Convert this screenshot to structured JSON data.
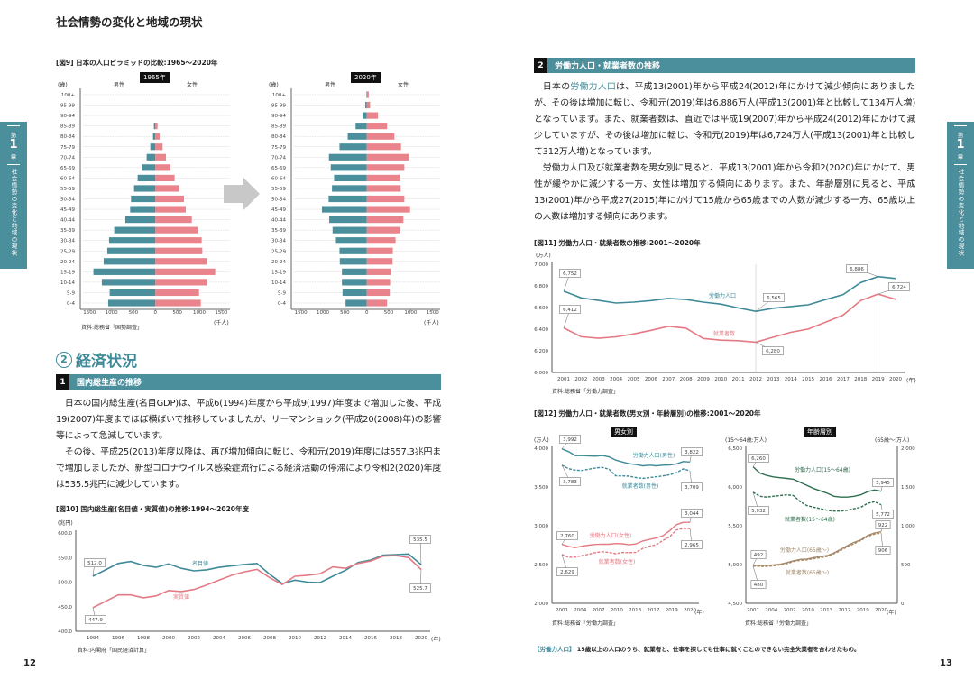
{
  "header": {
    "title": "社会情勢の変化と地域の現状"
  },
  "side_tab": {
    "chapter_prefix": "第",
    "chapter_num": "1",
    "chapter_suffix": "章",
    "label": "社会情勢の変化と地域の現状"
  },
  "left_page": {
    "page_number": "12",
    "section_heading": {
      "num": "②",
      "title": "経済状況"
    },
    "subsection": {
      "num": "1",
      "title": "国内総生産の推移"
    },
    "paragraphs": [
      "日本の国内総生産(名目GDP)は、平成6(1994)年度から平成9(1997)年度まで増加した後、平成19(2007)年度までほぼ横ばいで推移していましたが、リーマンショック(平成20(2008)年)の影響等によって急減しています。",
      "その後、平成25(2013)年度以降は、再び増加傾向に転じ、令和元(2019)年度には557.3兆円まで増加しましたが、新型コロナウイルス感染症流行による経済活動の停滞により令和2(2020)年度は535.5兆円に減少しています。"
    ]
  },
  "right_page": {
    "page_number": "13",
    "subsection": {
      "num": "2",
      "title": "労働力人口・就業者数の推移"
    },
    "paragraph1_pre": "日本の",
    "paragraph1_term": "労働力人口",
    "paragraph1_post": "は、平成13(2001)年から平成24(2012)年にかけて減少傾向にありましたが、その後は増加に転じ、令和元(2019)年は6,886万人(平成13(2001)年と比較して134万人増)となっています。また、就業者数は、直近では平成19(2007)年から平成24(2012)年にかけて減少していますが、その後は増加に転じ、令和元(2019)年は6,724万人(平成13(2001)年と比較して312万人増)となっています。",
    "paragraph2": "労働力人口及び就業者数を男女別に見ると、平成13(2001)年から令和2(2020)年にかけて、男性が緩やかに減少する一方、女性は増加する傾向にあります。また、年齢層別に見ると、平成13(2001)年から平成27(2015)年にかけて15歳から65歳までの人数が減少する一方、65歳以上の人数は増加する傾向にあります。",
    "footnote_term": "【労働力人口】",
    "footnote_text": "15歳以上の人口のうち、就業者と、仕事を探しても仕事に就くことのできない完全失業者を合わせたもの。"
  },
  "colors": {
    "teal": "#3f8a99",
    "pink": "#e47a84",
    "green": "#2e6f4f",
    "tan": "#a58a6a",
    "bar": "#4b8f9d"
  },
  "figures": {
    "fig9_title": "[図9] 日本の人口ピラミッドの比較:1965〜2020年",
    "fig9_source": "資料:総務省「国勢調査」",
    "fig12_title": "[図12] 労働力人口・就業者数(男女別・年齢層別)の推移:2001〜2020年"
  },
  "chart_data": [
    {
      "type": "bar",
      "subtype": "population-pyramid",
      "title": "1965年",
      "ylabel": "(歳)",
      "male_label": "男性",
      "female_label": "女性",
      "unit": "(千人)",
      "xticks": [
        "1500",
        "1000",
        "500",
        "0",
        "500",
        "1000",
        "1500"
      ],
      "xlim": [
        -1500,
        1500
      ],
      "categories": [
        "100+",
        "95-99",
        "90-94",
        "85-89",
        "80-84",
        "75-79",
        "70-74",
        "65-69",
        "60-64",
        "55-59",
        "50-54",
        "45-49",
        "40-44",
        "35-39",
        "30-34",
        "25-29",
        "20-24",
        "15-19",
        "10-14",
        "5-9",
        "0-4"
      ],
      "series": [
        {
          "name": "男性",
          "values": [
            0,
            0,
            0,
            34,
            55,
            116,
            199,
            308,
            404,
            486,
            555,
            575,
            685,
            938,
            1055,
            1096,
            1178,
            1411,
            1219,
            1041,
            1075
          ]
        },
        {
          "name": "女性",
          "values": [
            0,
            0,
            0,
            48,
            96,
            164,
            240,
            342,
            438,
            541,
            651,
            692,
            829,
            959,
            1055,
            1068,
            1178,
            1363,
            1171,
            993,
            1034
          ]
        }
      ]
    },
    {
      "type": "bar",
      "subtype": "population-pyramid",
      "title": "2020年",
      "ylabel": "(歳)",
      "male_label": "男性",
      "female_label": "女性",
      "unit": "(千人)",
      "xticks": [
        "1500",
        "1000",
        "500",
        "0",
        "500",
        "1000",
        "1500"
      ],
      "xlim": [
        -1500,
        1500
      ],
      "categories": [
        "100+",
        "95-99",
        "90-94",
        "85-89",
        "80-84",
        "75-79",
        "70-74",
        "65-69",
        "60-64",
        "55-59",
        "50-54",
        "45-49",
        "40-44",
        "35-39",
        "30-34",
        "25-29",
        "20-24",
        "15-19",
        "10-14",
        "5-9",
        "0-4"
      ],
      "series": [
        {
          "name": "男性",
          "values": [
            10,
            34,
            97,
            255,
            434,
            621,
            862,
            821,
            745,
            793,
            869,
            1021,
            855,
            779,
            703,
            621,
            614,
            566,
            566,
            552,
            483
          ]
        },
        {
          "name": "女性",
          "values": [
            45,
            76,
            255,
            462,
            628,
            779,
            959,
            855,
            752,
            772,
            855,
            986,
            834,
            752,
            655,
            593,
            586,
            552,
            531,
            524,
            462
          ]
        }
      ]
    },
    {
      "type": "line",
      "title": "[図10] 国内総生産(名目値・実質値)の推移:1994〜2020年度",
      "ylabel": "(兆円)",
      "xunit": "(年)",
      "source": "資料:内閣府「国民経済計算」",
      "ylim": [
        400,
        600
      ],
      "yticks": [
        "400.0",
        "450.0",
        "500.0",
        "550.0",
        "600.0"
      ],
      "x": [
        1994,
        1995,
        1996,
        1997,
        1998,
        1999,
        2000,
        2001,
        2002,
        2003,
        2004,
        2005,
        2006,
        2007,
        2008,
        2009,
        2010,
        2011,
        2012,
        2013,
        2014,
        2015,
        2016,
        2017,
        2018,
        2019,
        2020
      ],
      "xticks": [
        "1994",
        "1996",
        "1998",
        "2000",
        "2002",
        "2004",
        "2006",
        "2008",
        "2010",
        "2012",
        "2014",
        "2016",
        "2018",
        "2020"
      ],
      "series": [
        {
          "name": "名目値",
          "color": "#3f8a99",
          "values": [
            512.0,
            525,
            538,
            542,
            534,
            530,
            537,
            528,
            523,
            525,
            530,
            533,
            536,
            538,
            516,
            497,
            504,
            500,
            499,
            512,
            524,
            540,
            545,
            555,
            556,
            557.3,
            535.5
          ]
        },
        {
          "name": "実質値",
          "color": "#e47a84",
          "values": [
            447.9,
            461,
            474,
            474,
            468,
            472,
            483,
            481,
            485,
            494,
            504,
            514,
            521,
            526,
            509,
            495,
            512,
            514,
            517,
            531,
            528,
            538,
            543,
            553,
            554,
            550,
            525.7
          ]
        }
      ],
      "annotations": [
        "512.0",
        "447.9",
        "535.5",
        "525.7"
      ]
    },
    {
      "type": "line",
      "title": "[図11] 労働力人口・就業者数の推移:2001〜2020年",
      "ylabel": "(万人)",
      "xunit": "(年)",
      "source": "資料:総務省「労働力調査」",
      "ylim": [
        6000,
        7000
      ],
      "yticks": [
        "6,000",
        "6,200",
        "6,400",
        "6,600",
        "6,800",
        "7,000"
      ],
      "x": [
        2001,
        2002,
        2003,
        2004,
        2005,
        2006,
        2007,
        2008,
        2009,
        2010,
        2011,
        2012,
        2013,
        2014,
        2015,
        2016,
        2017,
        2018,
        2019,
        2020
      ],
      "xticks": [
        "2001",
        "2002",
        "2003",
        "2004",
        "2005",
        "2006",
        "2007",
        "2008",
        "2009",
        "2010",
        "2011",
        "2012",
        "2013",
        "2014",
        "2015",
        "2016",
        "2017",
        "2018",
        "2019",
        "2020"
      ],
      "series": [
        {
          "name": "労働力人口",
          "color": "#3f8a99",
          "values": [
            6752,
            6689,
            6666,
            6642,
            6650,
            6664,
            6684,
            6674,
            6650,
            6632,
            6596,
            6565,
            6593,
            6609,
            6625,
            6673,
            6720,
            6830,
            6886,
            6868
          ]
        },
        {
          "name": "就業者数",
          "color": "#e47a84",
          "values": [
            6412,
            6330,
            6316,
            6329,
            6356,
            6389,
            6427,
            6409,
            6314,
            6298,
            6293,
            6280,
            6326,
            6371,
            6401,
            6465,
            6530,
            6664,
            6724,
            6676
          ]
        }
      ],
      "annotations": [
        "6,752",
        "6,412",
        "6,565",
        "6,280",
        "6,886",
        "6,724"
      ]
    },
    {
      "type": "line",
      "title": "男女別",
      "ylabel": "(万人)",
      "xunit": "(年)",
      "source": "資料:総務省「労働力調査」",
      "ylim": [
        2000,
        4000
      ],
      "yticks": [
        "2,000",
        "2,500",
        "3,000",
        "3,500",
        "4,000"
      ],
      "xticks": [
        "2001",
        "2004",
        "2007",
        "2010",
        "2013",
        "2017",
        "2019",
        "2020"
      ],
      "series": [
        {
          "name": "労働力人口(男性)",
          "color": "#3f8a99",
          "dashed": false,
          "values": [
            3992,
            3956,
            3905,
            3905,
            3901,
            3898,
            3906,
            3888,
            3847,
            3822,
            3800,
            3789,
            3773,
            3781,
            3773,
            3781,
            3784,
            3798,
            3828,
            3822
          ]
        },
        {
          "name": "就業者数(男性)",
          "color": "#3f8a99",
          "dashed": true,
          "values": [
            3783,
            3736,
            3718,
            3713,
            3730,
            3745,
            3753,
            3729,
            3644,
            3643,
            3639,
            3622,
            3610,
            3621,
            3632,
            3643,
            3658,
            3685,
            3733,
            3709
          ]
        },
        {
          "name": "労働力人口(女性)",
          "color": "#e47a84",
          "dashed": false,
          "values": [
            2760,
            2733,
            2717,
            2737,
            2750,
            2759,
            2763,
            2762,
            2771,
            2768,
            2755,
            2766,
            2804,
            2824,
            2842,
            2872,
            2937,
            3014,
            3044,
            3044
          ]
        },
        {
          "name": "就業者数(女性)",
          "color": "#e47a84",
          "dashed": true,
          "values": [
            2629,
            2594,
            2597,
            2616,
            2633,
            2655,
            2665,
            2656,
            2640,
            2656,
            2654,
            2658,
            2707,
            2737,
            2754,
            2810,
            2859,
            2946,
            2965,
            2965
          ]
        }
      ],
      "annotations": [
        "3,992",
        "3,783",
        "3,822",
        "3,709",
        "3,044",
        "2,965",
        "2,760",
        "2,629"
      ]
    },
    {
      "type": "line",
      "title": "年齢層別",
      "ylabel": "(15〜64歳:万人)",
      "ylabel_right": "(65歳〜:万人)",
      "xunit": "(年)",
      "source": "資料:総務省「労働力調査」",
      "ylim": [
        4500,
        6500
      ],
      "yticks": [
        "4,500",
        "5,000",
        "5,500",
        "6,000",
        "6,500"
      ],
      "ylim_right": [
        0,
        2000
      ],
      "yticks_right": [
        "0",
        "500",
        "1,000",
        "1,500",
        "2,000"
      ],
      "xticks": [
        "2001",
        "2004",
        "2007",
        "2010",
        "2013",
        "2017",
        "2019",
        "2020"
      ],
      "series": [
        {
          "name": "労働力人口(15〜64歳)",
          "color": "#2e6f4f",
          "dashed": false,
          "axis": "left",
          "values": [
            6260,
            6180,
            6150,
            6130,
            6120,
            6110,
            6100,
            6060,
            6020,
            5980,
            5950,
            5920,
            5880,
            5870,
            5870,
            5880,
            5900,
            5940,
            5960,
            5945
          ]
        },
        {
          "name": "就業者数(15〜64歳)",
          "color": "#2e6f4f",
          "dashed": true,
          "axis": "left",
          "values": [
            5932,
            5880,
            5870,
            5880,
            5890,
            5900,
            5890,
            5810,
            5760,
            5740,
            5720,
            5700,
            5690,
            5690,
            5700,
            5720,
            5740,
            5790,
            5810,
            5772
          ]
        },
        {
          "name": "労働力人口(65歳〜)",
          "color": "#a58a6a",
          "dashed": false,
          "axis": "right",
          "values": [
            492,
            487,
            489,
            495,
            504,
            525,
            548,
            566,
            571,
            590,
            603,
            615,
            650,
            696,
            744,
            786,
            819,
            875,
            907,
            922
          ]
        },
        {
          "name": "就業者数(65歳〜)",
          "color": "#a58a6a",
          "dashed": true,
          "axis": "right",
          "values": [
            480,
            475,
            477,
            484,
            495,
            510,
            540,
            555,
            560,
            575,
            590,
            605,
            640,
            680,
            730,
            770,
            810,
            862,
            892,
            906
          ]
        }
      ],
      "annotations": [
        "6,260",
        "5,932",
        "5,945",
        "5,772",
        "922",
        "906",
        "492",
        "480"
      ]
    }
  ]
}
